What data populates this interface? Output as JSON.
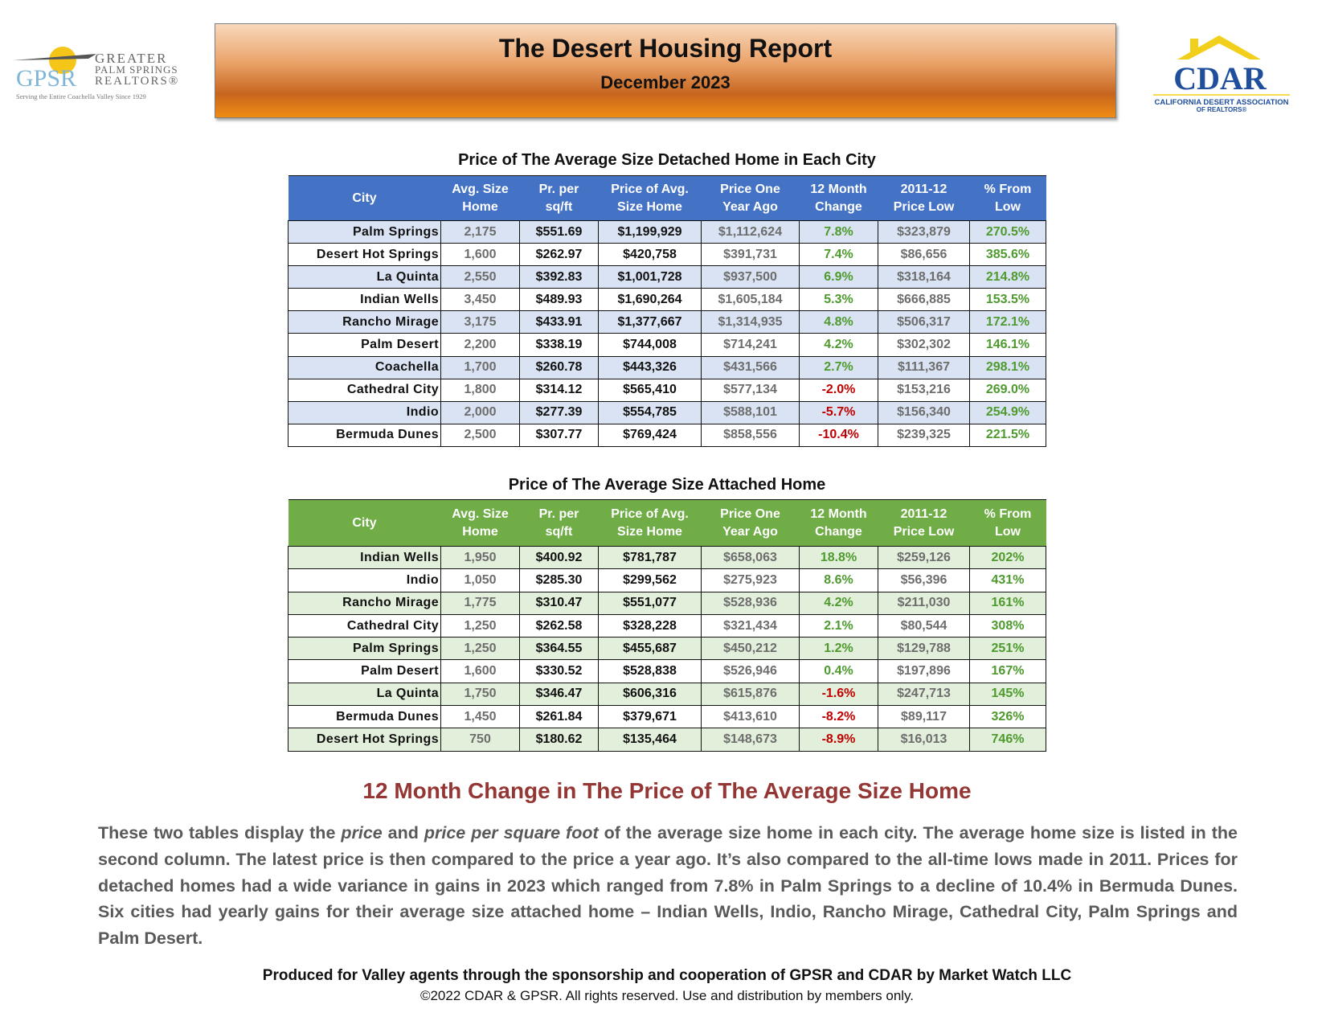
{
  "header": {
    "title": "The Desert Housing Report",
    "subtitle": "December 2023"
  },
  "logo_left": {
    "mark": "GPSR",
    "line1": "GREATER",
    "line2": "PALM SPRINGS",
    "line3": "REALTORS®",
    "tagline": "Serving the Entire Coachella Valley Since 1929"
  },
  "logo_right": {
    "mark": "CDAR",
    "line1": "CALIFORNIA DESERT ASSOCIATION",
    "line2": "OF REALTORS®"
  },
  "detached": {
    "title": "Price of The Average Size Detached Home in Each City",
    "color": "#4472c4",
    "stripe": "#dae3f3",
    "headers": [
      [
        "City"
      ],
      [
        "Avg. Size",
        "Home"
      ],
      [
        "Pr. per",
        "sq/ft"
      ],
      [
        "Price of Avg.",
        "Size Home"
      ],
      [
        "Price One",
        "Year Ago"
      ],
      [
        "12 Month",
        "Change"
      ],
      [
        "2011-12",
        "Price Low"
      ],
      [
        "% From",
        "Low"
      ]
    ],
    "rows": [
      [
        "Palm Springs",
        "2,175",
        "$551.69",
        "$1,199,929",
        "$1,112,624",
        "7.8%",
        "$323,879",
        "270.5%"
      ],
      [
        "Desert Hot Springs",
        "1,600",
        "$262.97",
        "$420,758",
        "$391,731",
        "7.4%",
        "$86,656",
        "385.6%"
      ],
      [
        "La Quinta",
        "2,550",
        "$392.83",
        "$1,001,728",
        "$937,500",
        "6.9%",
        "$318,164",
        "214.8%"
      ],
      [
        "Indian Wells",
        "3,450",
        "$489.93",
        "$1,690,264",
        "$1,605,184",
        "5.3%",
        "$666,885",
        "153.5%"
      ],
      [
        "Rancho Mirage",
        "3,175",
        "$433.91",
        "$1,377,667",
        "$1,314,935",
        "4.8%",
        "$506,317",
        "172.1%"
      ],
      [
        "Palm Desert",
        "2,200",
        "$338.19",
        "$744,008",
        "$714,241",
        "4.2%",
        "$302,302",
        "146.1%"
      ],
      [
        "Coachella",
        "1,700",
        "$260.78",
        "$443,326",
        "$431,566",
        "2.7%",
        "$111,367",
        "298.1%"
      ],
      [
        "Cathedral City",
        "1,800",
        "$314.12",
        "$565,410",
        "$577,134",
        "-2.0%",
        "$153,216",
        "269.0%"
      ],
      [
        "Indio",
        "2,000",
        "$277.39",
        "$554,785",
        "$588,101",
        "-5.7%",
        "$156,340",
        "254.9%"
      ],
      [
        "Bermuda Dunes",
        "2,500",
        "$307.77",
        "$769,424",
        "$858,556",
        "-10.4%",
        "$239,325",
        "221.5%"
      ]
    ]
  },
  "attached": {
    "title": "Price of The Average Size Attached Home",
    "color": "#70ad47",
    "stripe": "#e2efda",
    "headers": [
      [
        "City"
      ],
      [
        "Avg. Size",
        "Home"
      ],
      [
        "Pr. per",
        "sq/ft"
      ],
      [
        "Price of Avg.",
        "Size Home"
      ],
      [
        "Price One",
        "Year Ago"
      ],
      [
        "12 Month",
        "Change"
      ],
      [
        "2011-12",
        "Price Low"
      ],
      [
        "% From",
        "Low"
      ]
    ],
    "rows": [
      [
        "Indian Wells",
        "1,950",
        "$400.92",
        "$781,787",
        "$658,063",
        "18.8%",
        "$259,126",
        "202%"
      ],
      [
        "Indio",
        "1,050",
        "$285.30",
        "$299,562",
        "$275,923",
        "8.6%",
        "$56,396",
        "431%"
      ],
      [
        "Rancho Mirage",
        "1,775",
        "$310.47",
        "$551,077",
        "$528,936",
        "4.2%",
        "$211,030",
        "161%"
      ],
      [
        "Cathedral City",
        "1,250",
        "$262.58",
        "$328,228",
        "$321,434",
        "2.1%",
        "$80,544",
        "308%"
      ],
      [
        "Palm Springs",
        "1,250",
        "$364.55",
        "$455,687",
        "$450,212",
        "1.2%",
        "$129,788",
        "251%"
      ],
      [
        "Palm Desert",
        "1,600",
        "$330.52",
        "$528,838",
        "$526,946",
        "0.4%",
        "$197,896",
        "167%"
      ],
      [
        "La Quinta",
        "1,750",
        "$346.47",
        "$606,316",
        "$615,876",
        "-1.6%",
        "$247,713",
        "145%"
      ],
      [
        "Bermuda Dunes",
        "1,450",
        "$261.84",
        "$379,671",
        "$413,610",
        "-8.2%",
        "$89,117",
        "326%"
      ],
      [
        "Desert Hot Springs",
        "750",
        "$180.62",
        "$135,464",
        "$148,673",
        "-8.9%",
        "$16,013",
        "746%"
      ]
    ]
  },
  "section": {
    "heading": "12 Month Change in The Price of The Average Size Home",
    "paragraph": [
      {
        "text": "These two tables display the ",
        "italic": false
      },
      {
        "text": "price",
        "italic": true
      },
      {
        "text": " and ",
        "italic": false
      },
      {
        "text": "price per square foot",
        "italic": true
      },
      {
        "text": " of the average size home in each city. The average home size is listed in the second column. The latest price is then compared to the price a year ago. It’s also compared to the all-time lows made in 2011. Prices for detached homes had a wide variance in gains in 2023 which ranged from 7.8% in Palm Springs to a decline of 10.4% in Bermuda Dunes. Six cities had yearly gains for their average size attached home – Indian Wells, Indio, Rancho Mirage, Cathedral City, Palm Springs and Palm Desert.",
        "italic": false
      }
    ]
  },
  "footer": {
    "credit": "Produced for Valley agents through the sponsorship and cooperation of GPSR and CDAR by Market Watch LLC",
    "copyright": "©2022 CDAR & GPSR.  All rights reserved.  Use and distribution by members only."
  }
}
